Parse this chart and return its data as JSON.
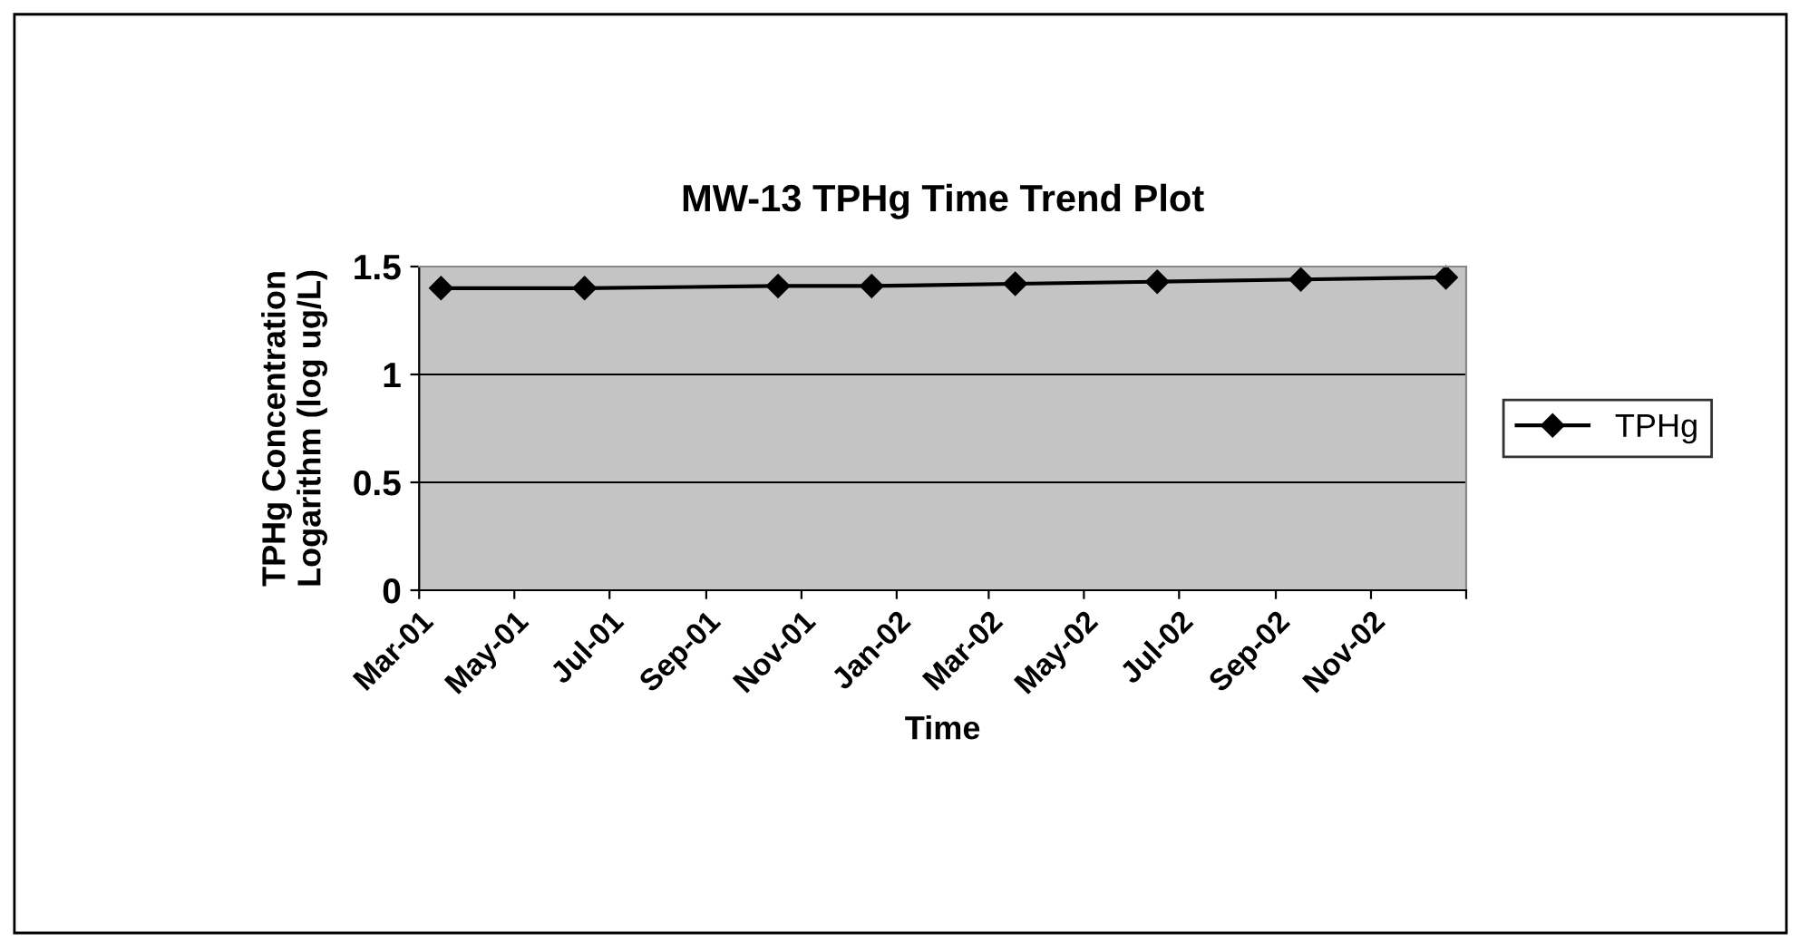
{
  "chart_data": {
    "type": "line",
    "title": "MW-13 TPHg Time Trend Plot",
    "xlabel": "Time",
    "ylabel": "TPHg Concentration\nLogarithm (log ug/L)",
    "x": [
      "2001-03-15",
      "2001-06-15",
      "2001-10-17",
      "2001-12-16",
      "2002-03-18",
      "2002-06-17",
      "2002-09-17",
      "2002-12-19"
    ],
    "series": [
      {
        "name": "TPHg",
        "color": "#000000",
        "values": [
          1.4,
          1.4,
          1.41,
          1.41,
          1.42,
          1.43,
          1.44,
          1.45
        ]
      }
    ],
    "xlim": [
      "2001-03-01",
      "2003-01-01"
    ],
    "xticks": [
      {
        "value": "2001-03-01",
        "label": "Mar-01"
      },
      {
        "value": "2001-05-01",
        "label": "May-01"
      },
      {
        "value": "2001-07-01",
        "label": "Jul-01"
      },
      {
        "value": "2001-09-01",
        "label": "Sep-01"
      },
      {
        "value": "2001-11-01",
        "label": "Nov-01"
      },
      {
        "value": "2002-01-01",
        "label": "Jan-02"
      },
      {
        "value": "2002-03-01",
        "label": "Mar-02"
      },
      {
        "value": "2002-05-01",
        "label": "May-02"
      },
      {
        "value": "2002-07-01",
        "label": "Jul-02"
      },
      {
        "value": "2002-09-01",
        "label": "Sep-02"
      },
      {
        "value": "2002-11-01",
        "label": "Nov-02"
      },
      {
        "value": "2003-01-01",
        "label": null
      }
    ],
    "ylim": [
      0,
      1.5
    ],
    "yticks": [
      0,
      0.5,
      1,
      1.5
    ],
    "grid": "y",
    "legend": "right",
    "marker": "diamond",
    "line_style": "solid"
  }
}
